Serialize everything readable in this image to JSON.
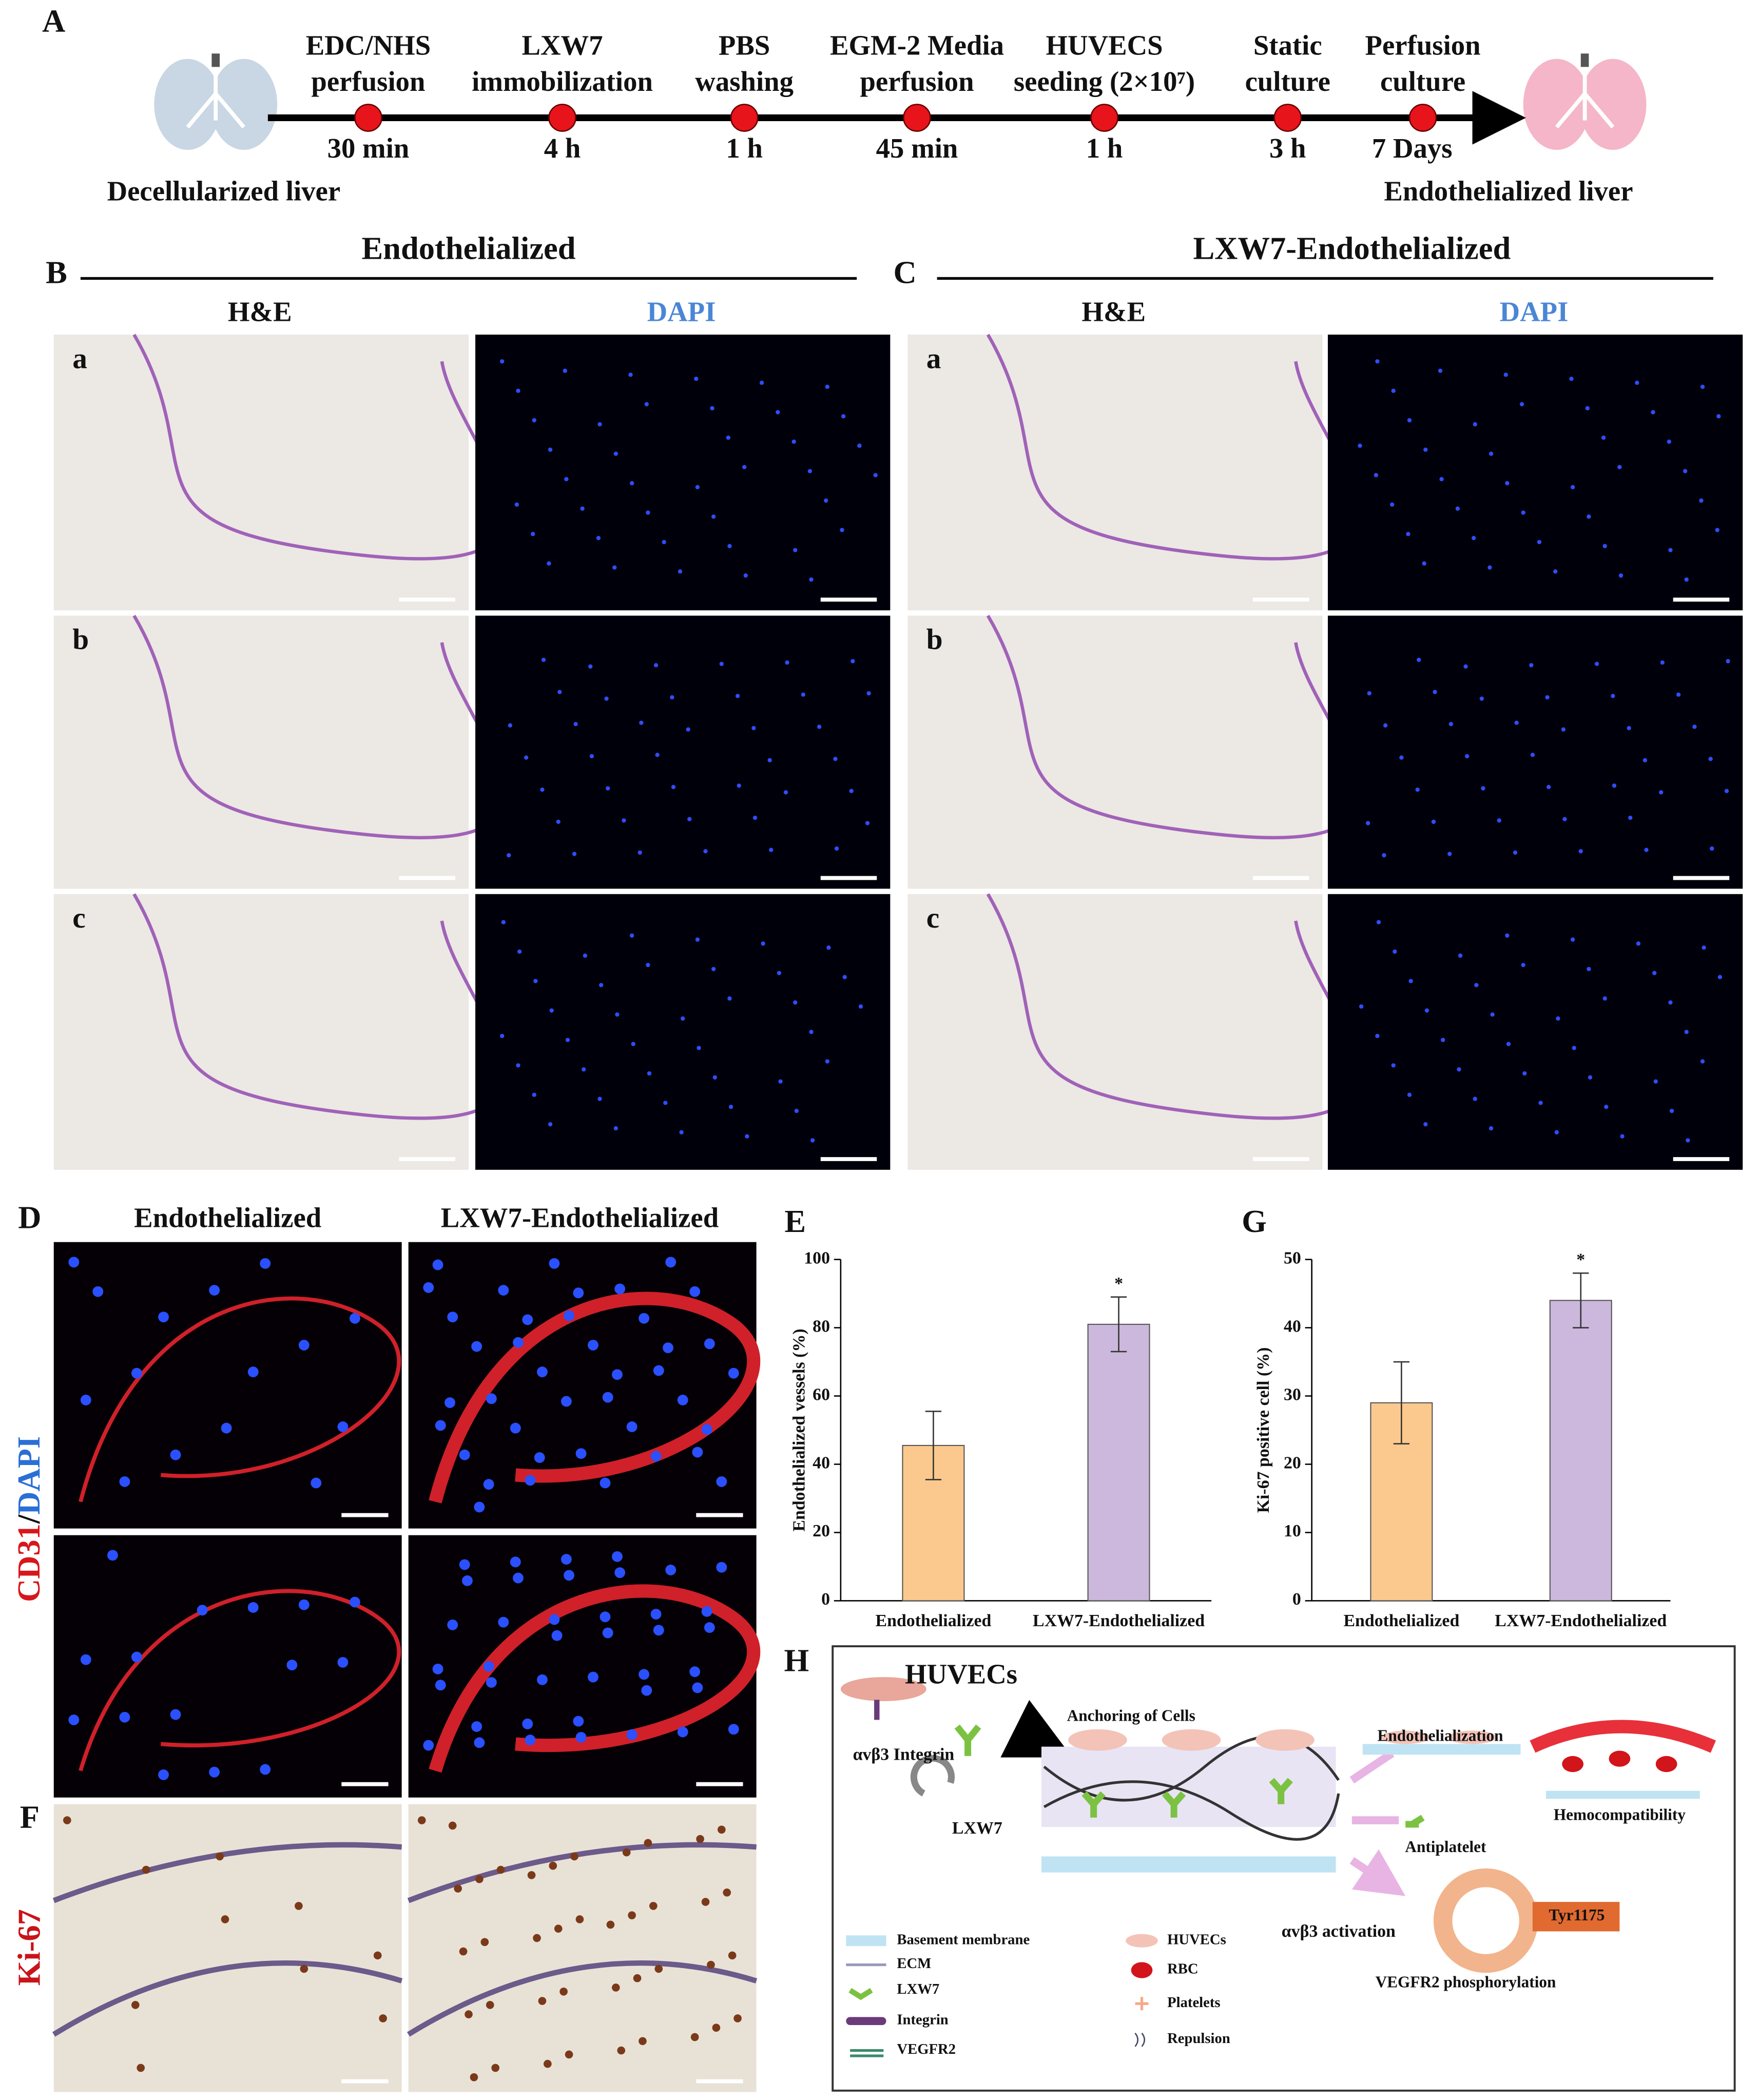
{
  "panel_labels": [
    "A",
    "B",
    "C",
    "D",
    "E",
    "F",
    "G",
    "H"
  ],
  "timeline": {
    "start_label": "Decellularized liver",
    "end_label": "Endothelialized  liver",
    "steps": [
      {
        "label": [
          "EDC/NHS",
          "perfusion"
        ],
        "duration": "30 min"
      },
      {
        "label": [
          "LXW7",
          "immobilization"
        ],
        "duration": "4 h"
      },
      {
        "label": [
          "PBS",
          "washing"
        ],
        "duration": "1 h"
      },
      {
        "label": [
          "EGM-2 Media",
          "perfusion"
        ],
        "duration": "45 min"
      },
      {
        "label": [
          "HUVECS",
          "seeding (2×10⁷)"
        ],
        "duration": "1 h"
      },
      {
        "label": [
          "Static",
          "culture"
        ],
        "duration": "3 h"
      },
      {
        "label": [
          "Perfusion",
          "culture"
        ],
        "duration": "7 Days"
      }
    ]
  },
  "histology": {
    "groups": [
      "Endothelialized",
      "LXW7-Endothelialized"
    ],
    "stains": [
      "H&E",
      "DAPI"
    ],
    "rows": [
      "a",
      "b",
      "c"
    ]
  },
  "immunostaining": {
    "groups": [
      "Endothelialized",
      "LXW7-Endothelialized"
    ],
    "cd31_label": [
      "CD31",
      "/",
      "DAPI"
    ],
    "ki67_label": "Ki-67"
  },
  "chart_data": [
    {
      "type": "bar",
      "y_label": "Endothelialized vessels (%)",
      "categories": [
        "Endothelialized",
        "LXW7-Endothelialized"
      ],
      "values": [
        45.5,
        81
      ],
      "errors": [
        10,
        8
      ],
      "colors": [
        "#fbc98e",
        "#cbb8dc"
      ],
      "annotation": "*",
      "ylim": [
        0,
        100
      ],
      "yticks": [
        0,
        20,
        40,
        60,
        80,
        100
      ]
    },
    {
      "type": "bar",
      "y_label": "Ki-67 positive cell (%)",
      "categories": [
        "Endothelialized",
        "LXW7-Endothelialized"
      ],
      "values": [
        29,
        44
      ],
      "errors": [
        6,
        4
      ],
      "colors": [
        "#fbc98e",
        "#cbb8dc"
      ],
      "annotation": "*",
      "ylim": [
        0,
        50
      ],
      "yticks": [
        0,
        10,
        20,
        30,
        40,
        50
      ]
    }
  ],
  "schematic": {
    "texts": [
      "HUVECs",
      "Anchoring of Cells",
      "αvβ3 Integrin",
      "LXW7",
      "Endothelialization",
      "Hemocompatibility",
      "Antiplatelet",
      "αvβ3 activation",
      "Tyr1175",
      "VEGFR2 phosphorylation"
    ],
    "legend": [
      "Basement membrane",
      "ECM",
      "LXW7",
      "Integrin",
      "VEGFR2",
      "HUVECs",
      "RBC",
      "Platelets",
      "Repulsion"
    ]
  }
}
